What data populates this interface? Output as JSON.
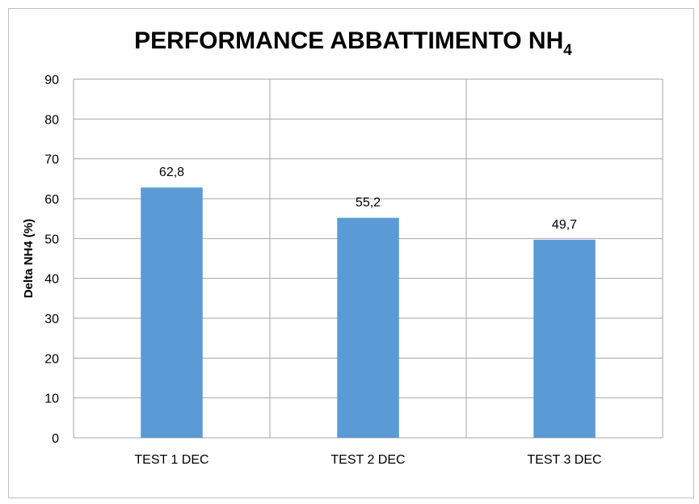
{
  "chart_data": {
    "type": "bar",
    "title": "PERFORMANCE ABBATTIMENTO NH",
    "title_subscript": "4",
    "xlabel": "",
    "ylabel": "Delta NH4 (%)",
    "categories": [
      "TEST 1 DEC",
      "TEST 2 DEC",
      "TEST 3 DEC"
    ],
    "values": [
      62.8,
      55.2,
      49.7
    ],
    "value_labels": [
      "62,8",
      "55,2",
      "49,7"
    ],
    "ylim": [
      0,
      90
    ],
    "yticks": [
      0,
      10,
      20,
      30,
      40,
      50,
      60,
      70,
      80,
      90
    ],
    "grid": true,
    "legend": "none",
    "bar_color": "#5b9bd5",
    "grid_color": "#a6a6a6"
  }
}
